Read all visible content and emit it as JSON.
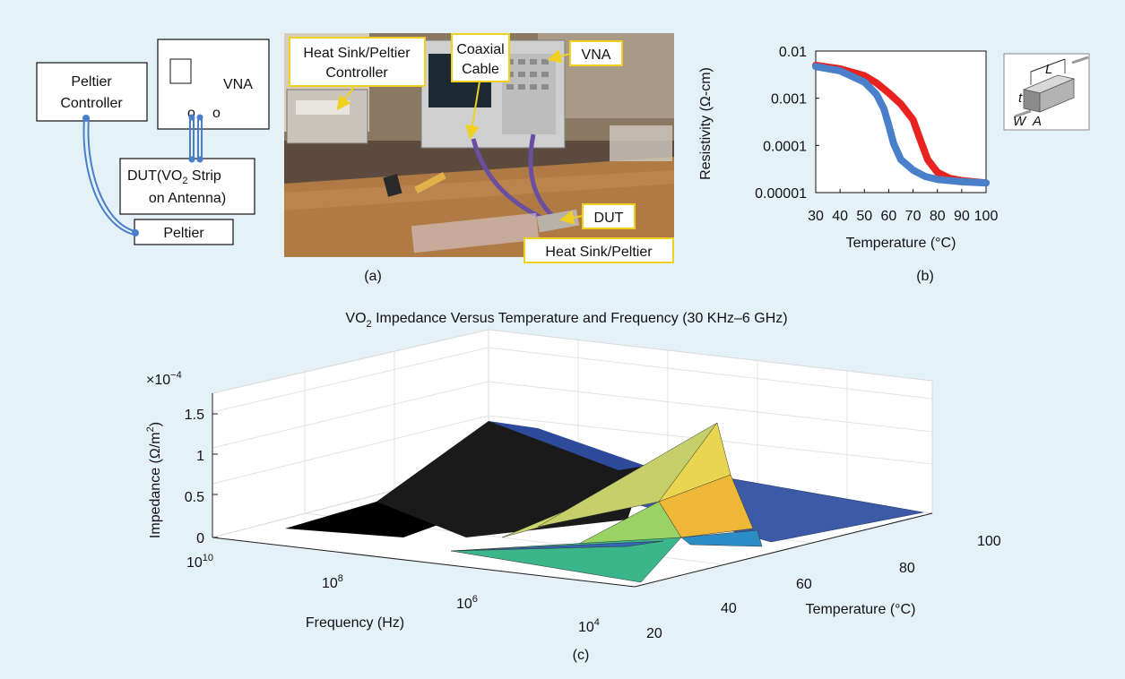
{
  "panel_a": {
    "diagram": {
      "peltier_controller": [
        "Peltier",
        "Controller"
      ],
      "vna": "VNA",
      "vna_ports": [
        "o",
        "o"
      ],
      "dut": [
        "DUT(VO",
        "2",
        " Strip",
        "on Antenna)"
      ],
      "peltier": "Peltier"
    },
    "photo_callouts": {
      "heat_sink_controller": [
        "Heat Sink/Peltier",
        "Controller"
      ],
      "coaxial_cable": [
        "Coaxial",
        "Cable"
      ],
      "vna": "VNA",
      "dut": "DUT",
      "heat_sink_peltier": "Heat Sink/Peltier"
    },
    "caption": "(a)"
  },
  "panel_b_caption": "(b)",
  "panel_c_caption": "(c)",
  "inset": {
    "L": "L",
    "t": "t",
    "W": "W",
    "A": "A"
  },
  "colors": {
    "background": "#e5f1f9",
    "red_curve": "#e8231f",
    "blue_curve": "#4a7fc9",
    "callout_border": "#f0d020",
    "diagram_line": "#4a7fc9"
  },
  "chart_data": [
    {
      "type": "line",
      "xlabel": "Temperature (°C)",
      "ylabel": "Resistivity (Ω-cm)",
      "x_ticks": [
        "30",
        "40",
        "50",
        "60",
        "70",
        "80",
        "90",
        "100"
      ],
      "y_ticks": [
        "0.01",
        "0.001",
        "0.0001",
        "0.00001"
      ],
      "xlim": [
        30,
        100
      ],
      "ylim": [
        1e-05,
        0.01
      ],
      "yscale": "log",
      "grid": false,
      "series": [
        {
          "color": "#e8231f",
          "x": [
            30,
            40,
            50,
            55,
            60,
            65,
            70,
            73,
            76,
            80,
            85,
            90,
            100
          ],
          "y": [
            0.005,
            0.0042,
            0.003,
            0.0021,
            0.0013,
            0.00075,
            0.00035,
            0.00013,
            5e-05,
            2.7e-05,
            2e-05,
            1.8e-05,
            1.6e-05
          ]
        },
        {
          "color": "#4a7fc9",
          "x": [
            30,
            40,
            50,
            55,
            58,
            60,
            62,
            65,
            70,
            75,
            80,
            90,
            100
          ],
          "y": [
            0.0047,
            0.0038,
            0.0022,
            0.0012,
            0.0006,
            0.00027,
            0.00011,
            5e-05,
            3e-05,
            2.2e-05,
            1.9e-05,
            1.7e-05,
            1.6e-05
          ]
        }
      ]
    },
    {
      "type": "surface",
      "title_parts": [
        "VO",
        "2",
        " Impedance Versus Temperature and Frequency (30 KHz–6 GHz)"
      ],
      "zlabel_parts": [
        "Impedance (Ω/m",
        "2",
        ")"
      ],
      "z_multiplier_parts": [
        "×10",
        "−4"
      ],
      "z_ticks": [
        "0",
        "0.5",
        "1",
        "1.5"
      ],
      "xlabel": "Frequency (Hz)",
      "x_ticks": [
        {
          "base": "10",
          "exp": "10"
        },
        {
          "base": "10",
          "exp": "8"
        },
        {
          "base": "10",
          "exp": "6"
        },
        {
          "base": "10",
          "exp": "4"
        }
      ],
      "ylabel": "Temperature (°C)",
      "y_ticks": [
        "20",
        "40",
        "60",
        "80",
        "100"
      ],
      "zlim": [
        0,
        1.5
      ],
      "peak_value": 1.0
    }
  ]
}
